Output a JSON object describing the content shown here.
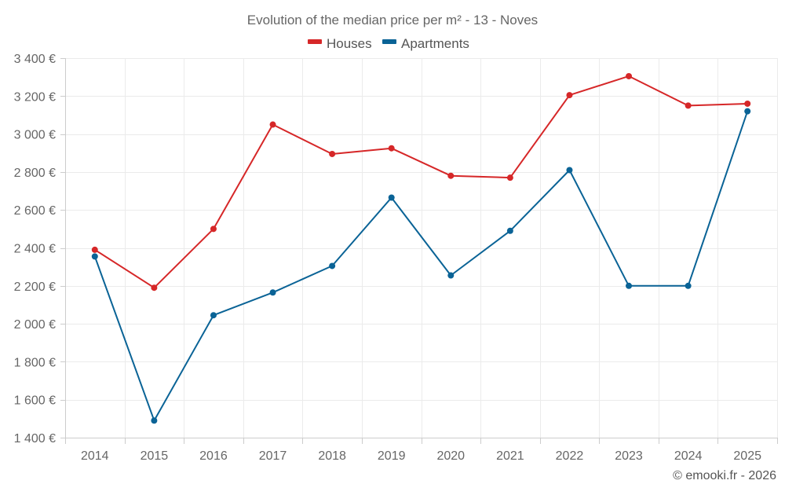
{
  "chart_data": {
    "type": "line",
    "title": "Evolution of the median price per m² - 13 - Noves",
    "xlabel": "",
    "ylabel": "",
    "categories": [
      "2014",
      "2015",
      "2016",
      "2017",
      "2018",
      "2019",
      "2020",
      "2021",
      "2022",
      "2023",
      "2024",
      "2025"
    ],
    "ylim": [
      1400,
      3400
    ],
    "y_ticks": [
      1400,
      1600,
      1800,
      2000,
      2200,
      2400,
      2600,
      2800,
      3000,
      3200,
      3400
    ],
    "y_tick_labels": [
      "1 400 €",
      "1 600 €",
      "1 800 €",
      "2 000 €",
      "2 200 €",
      "2 400 €",
      "2 600 €",
      "2 800 €",
      "3 000 €",
      "3 200 €",
      "3 400 €"
    ],
    "grid": true,
    "legend_position": "top-center",
    "series": [
      {
        "name": "Houses",
        "color": "#d62728",
        "values": [
          2390,
          2190,
          2500,
          3050,
          2895,
          2925,
          2780,
          2770,
          3205,
          3305,
          3150,
          3160
        ]
      },
      {
        "name": "Apartments",
        "color": "#0a6396",
        "values": [
          2355,
          1490,
          2045,
          2165,
          2305,
          2665,
          2255,
          2490,
          2810,
          2200,
          2200,
          3120
        ]
      }
    ]
  },
  "credit": "© emooki.fr - 2026"
}
